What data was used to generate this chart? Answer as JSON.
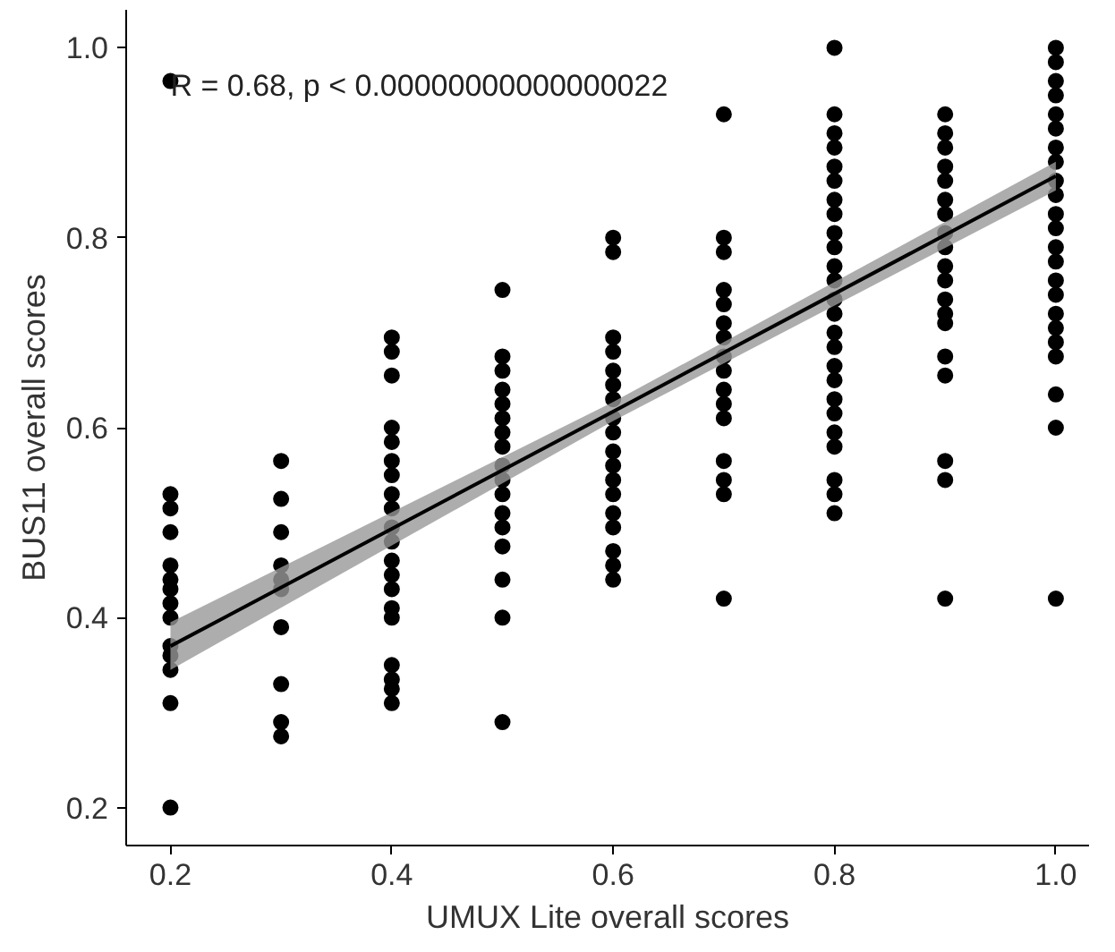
{
  "chart_data": {
    "type": "scatter",
    "xlabel": "UMUX Lite overall scores",
    "ylabel": "BUS11 overall scores",
    "xlim": [
      0.16,
      1.03
    ],
    "ylim": [
      0.16,
      1.04
    ],
    "xticks": [
      {
        "value": 0.2,
        "label": "0.2"
      },
      {
        "value": 0.4,
        "label": "0.4"
      },
      {
        "value": 0.6,
        "label": "0.6"
      },
      {
        "value": 0.8,
        "label": "0.8"
      },
      {
        "value": 1.0,
        "label": "1.0"
      }
    ],
    "yticks": [
      {
        "value": 0.2,
        "label": "0.2"
      },
      {
        "value": 0.4,
        "label": "0.4"
      },
      {
        "value": 0.6,
        "label": "0.6"
      },
      {
        "value": 0.8,
        "label": "0.8"
      },
      {
        "value": 1.0,
        "label": "1.0"
      }
    ],
    "grid": false,
    "annotations": [
      "R = 0.68, p < 0.00000000000000022"
    ],
    "series": [
      {
        "marker": "circle",
        "color": "#000000",
        "x": [
          0.2,
          0.2,
          0.2,
          0.2,
          0.2,
          0.2,
          0.2,
          0.2,
          0.2,
          0.2,
          0.2,
          0.2,
          0.2,
          0.2,
          0.3,
          0.3,
          0.3,
          0.3,
          0.3,
          0.3,
          0.3,
          0.3,
          0.3,
          0.3,
          0.4,
          0.4,
          0.4,
          0.4,
          0.4,
          0.4,
          0.4,
          0.4,
          0.4,
          0.4,
          0.4,
          0.4,
          0.4,
          0.4,
          0.4,
          0.4,
          0.4,
          0.4,
          0.4,
          0.4,
          0.5,
          0.5,
          0.5,
          0.5,
          0.5,
          0.5,
          0.5,
          0.5,
          0.5,
          0.5,
          0.5,
          0.5,
          0.5,
          0.5,
          0.5,
          0.5,
          0.5,
          0.6,
          0.6,
          0.6,
          0.6,
          0.6,
          0.6,
          0.6,
          0.6,
          0.6,
          0.6,
          0.6,
          0.6,
          0.6,
          0.6,
          0.6,
          0.6,
          0.6,
          0.6,
          0.7,
          0.7,
          0.7,
          0.7,
          0.7,
          0.7,
          0.7,
          0.7,
          0.7,
          0.7,
          0.7,
          0.7,
          0.7,
          0.7,
          0.7,
          0.7,
          0.8,
          0.8,
          0.8,
          0.8,
          0.8,
          0.8,
          0.8,
          0.8,
          0.8,
          0.8,
          0.8,
          0.8,
          0.8,
          0.8,
          0.8,
          0.8,
          0.8,
          0.8,
          0.8,
          0.8,
          0.8,
          0.8,
          0.8,
          0.8,
          0.8,
          0.9,
          0.9,
          0.9,
          0.9,
          0.9,
          0.9,
          0.9,
          0.9,
          0.9,
          0.9,
          0.9,
          0.9,
          0.9,
          0.9,
          0.9,
          0.9,
          0.9,
          0.9,
          0.9,
          1.0,
          1.0,
          1.0,
          1.0,
          1.0,
          1.0,
          1.0,
          1.0,
          1.0,
          1.0,
          1.0,
          1.0,
          1.0,
          1.0,
          1.0,
          1.0,
          1.0,
          1.0,
          1.0,
          1.0,
          1.0,
          1.0,
          1.0
        ],
        "values": [
          0.965,
          0.53,
          0.515,
          0.49,
          0.455,
          0.44,
          0.43,
          0.415,
          0.4,
          0.37,
          0.36,
          0.345,
          0.31,
          0.2,
          0.565,
          0.525,
          0.49,
          0.455,
          0.44,
          0.43,
          0.39,
          0.33,
          0.29,
          0.275,
          0.695,
          0.68,
          0.655,
          0.6,
          0.585,
          0.565,
          0.55,
          0.53,
          0.515,
          0.495,
          0.48,
          0.46,
          0.445,
          0.43,
          0.41,
          0.4,
          0.35,
          0.335,
          0.325,
          0.31,
          0.745,
          0.675,
          0.66,
          0.64,
          0.625,
          0.61,
          0.595,
          0.58,
          0.56,
          0.545,
          0.53,
          0.51,
          0.495,
          0.475,
          0.44,
          0.4,
          0.29,
          0.8,
          0.785,
          0.695,
          0.68,
          0.66,
          0.645,
          0.63,
          0.61,
          0.595,
          0.575,
          0.56,
          0.545,
          0.53,
          0.51,
          0.495,
          0.47,
          0.455,
          0.44,
          0.93,
          0.8,
          0.785,
          0.745,
          0.73,
          0.71,
          0.695,
          0.675,
          0.66,
          0.64,
          0.625,
          0.61,
          0.565,
          0.545,
          0.53,
          0.42,
          1.0,
          0.93,
          0.91,
          0.895,
          0.875,
          0.86,
          0.84,
          0.825,
          0.805,
          0.79,
          0.77,
          0.755,
          0.735,
          0.72,
          0.7,
          0.685,
          0.665,
          0.65,
          0.63,
          0.615,
          0.595,
          0.58,
          0.545,
          0.53,
          0.51,
          0.93,
          0.91,
          0.895,
          0.875,
          0.86,
          0.84,
          0.825,
          0.805,
          0.79,
          0.77,
          0.755,
          0.735,
          0.72,
          0.71,
          0.675,
          0.655,
          0.565,
          0.545,
          0.42,
          1.0,
          0.985,
          0.965,
          0.95,
          0.93,
          0.915,
          0.895,
          0.88,
          0.86,
          0.845,
          0.825,
          0.81,
          0.79,
          0.775,
          0.755,
          0.74,
          0.72,
          0.705,
          0.69,
          0.675,
          0.635,
          0.6,
          0.42
        ]
      },
      {
        "type": "line",
        "marker": "none",
        "color": "#000000",
        "x": [
          0.2,
          0.6,
          1.0
        ],
        "values": [
          0.37,
          0.617,
          0.865
        ],
        "lower": [
          0.345,
          0.607,
          0.85
        ],
        "upper": [
          0.395,
          0.627,
          0.88
        ]
      }
    ]
  }
}
